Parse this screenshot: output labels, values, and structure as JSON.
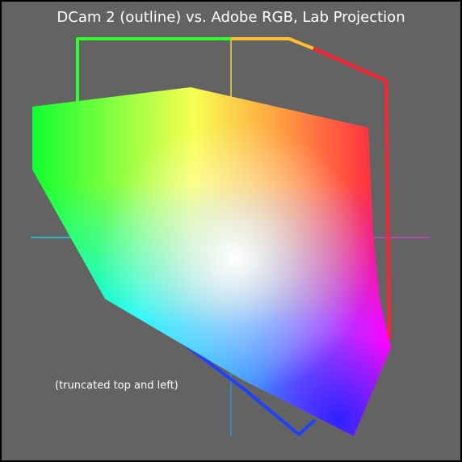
{
  "title": "DCam 2 (outline) vs. Adobe RGB, Lab Projection",
  "note": "(truncated top and left)"
}
